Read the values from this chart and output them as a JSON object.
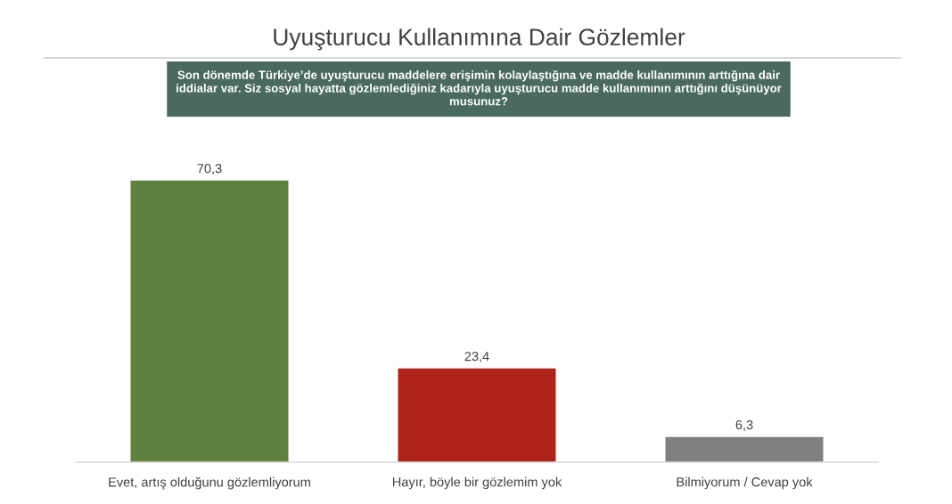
{
  "chart_data": {
    "type": "bar",
    "title": "Uyuşturucu Kullanımına Dair Gözlemler",
    "subtitle": "Son dönemde Türkiye’de uyuşturucu maddelere erişimin kolaylaştığına ve madde kullanımının arttığına dair\niddialar var. Siz sosyal hayatta gözlemlediğiniz kadarıyla uyuşturucu madde kullanımının arttığını düşünüyor\nmusunuz?",
    "categories": [
      "Evet, artış olduğunu gözlemliyorum",
      "Hayır, böyle bir gözlemim yok",
      "Bilmiyorum / Cevap yok"
    ],
    "values": [
      70.3,
      23.4,
      6.3
    ],
    "colors": [
      "#5f803e",
      "#b0231a",
      "#808080"
    ],
    "value_labels": [
      "70,3",
      "23,4",
      "6,3"
    ],
    "tick_labels": "x"
  }
}
